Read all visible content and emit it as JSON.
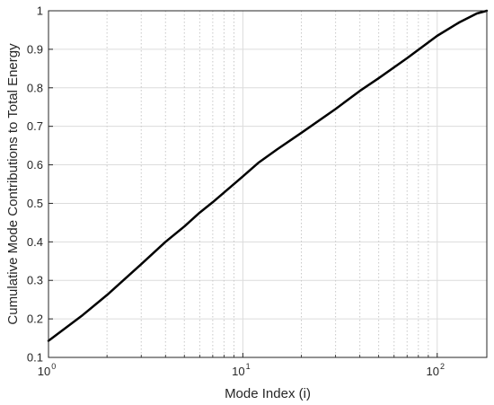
{
  "chart_data": {
    "type": "line",
    "title": "",
    "xlabel": "Mode Index (i)",
    "ylabel": "Cumulative Mode Contributions to Total Energy",
    "x_scale": "log",
    "xlim": [
      1,
      180
    ],
    "ylim": [
      0.1,
      1.0
    ],
    "grid": true,
    "x_ticks": [
      {
        "value": 1,
        "base": "10",
        "exp": "0"
      },
      {
        "value": 10,
        "base": "10",
        "exp": "1"
      },
      {
        "value": 100,
        "base": "10",
        "exp": "2"
      }
    ],
    "y_ticks": [
      {
        "value": 0.1,
        "label": "0.1"
      },
      {
        "value": 0.2,
        "label": "0.2"
      },
      {
        "value": 0.3,
        "label": "0.3"
      },
      {
        "value": 0.4,
        "label": "0.4"
      },
      {
        "value": 0.5,
        "label": "0.5"
      },
      {
        "value": 0.6,
        "label": "0.6"
      },
      {
        "value": 0.7,
        "label": "0.7"
      },
      {
        "value": 0.8,
        "label": "0.8"
      },
      {
        "value": 0.9,
        "label": "0.9"
      },
      {
        "value": 1.0,
        "label": "1"
      }
    ],
    "series": [
      {
        "color": "#000000",
        "x": [
          1,
          1.5,
          2,
          3,
          4,
          5,
          6,
          7,
          8,
          10,
          12,
          15,
          20,
          30,
          40,
          50,
          70,
          100,
          130,
          160,
          180
        ],
        "y": [
          0.143,
          0.21,
          0.262,
          0.342,
          0.4,
          0.44,
          0.476,
          0.503,
          0.528,
          0.57,
          0.605,
          0.64,
          0.683,
          0.745,
          0.792,
          0.825,
          0.877,
          0.935,
          0.97,
          0.993,
          1.0
        ]
      }
    ]
  }
}
